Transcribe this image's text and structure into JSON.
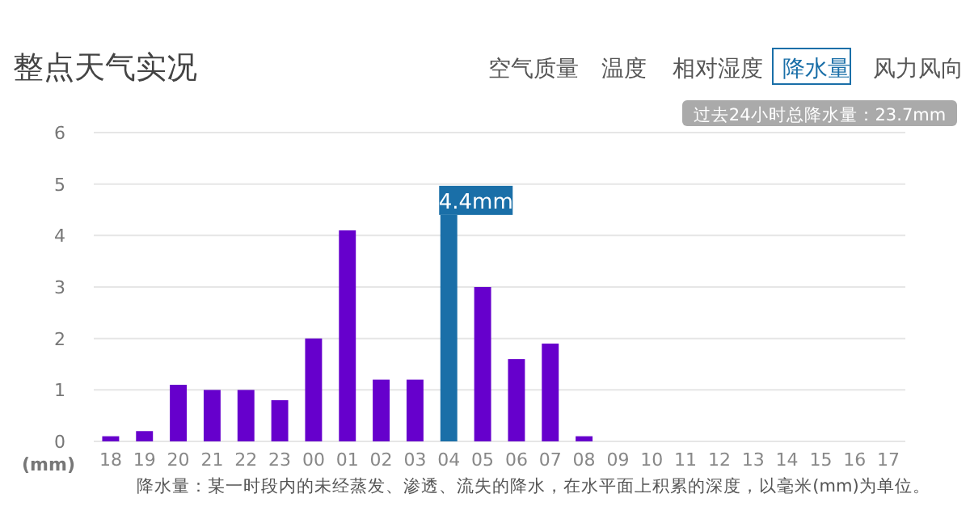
{
  "chart_data": {
    "type": "bar",
    "title": "整点天气实况",
    "annotations": [
      "空气质量",
      "温度",
      "相对湿度",
      "降水量",
      "风力风向",
      "过去24小时总降水量：23.7mm",
      "降水量：某一时段内的未经蒸发、渗透、流失的降水，在水平面上积累的深度，以毫米(mm)为单位。"
    ],
    "ylabel": "(mm)",
    "categories": [
      "18",
      "19",
      "20",
      "21",
      "22",
      "23",
      "00",
      "01",
      "02",
      "03",
      "04",
      "05",
      "06",
      "07",
      "08",
      "09",
      "10",
      "11",
      "12",
      "13",
      "14",
      "15",
      "16",
      "17"
    ],
    "values": [
      0.1,
      0.2,
      1.1,
      1.0,
      1.0,
      0.8,
      2.0,
      4.1,
      1.2,
      1.2,
      4.4,
      3.0,
      1.6,
      1.9,
      0.1,
      0,
      0,
      0,
      0,
      0,
      0,
      0,
      0,
      0
    ],
    "colors": [
      "#6600cc",
      "#6600cc",
      "#6600cc",
      "#6600cc",
      "#6600cc",
      "#6600cc",
      "#6600cc",
      "#6600cc",
      "#6600cc",
      "#6600cc",
      "#1a6fa8",
      "#6600cc",
      "#6600cc",
      "#6600cc",
      "#6600cc",
      "#6600cc",
      "#6600cc",
      "#6600cc",
      "#6600cc",
      "#6600cc",
      "#6600cc",
      "#6600cc",
      "#6600cc",
      "#6600cc"
    ],
    "value_labels": [
      null,
      null,
      null,
      null,
      null,
      null,
      null,
      null,
      null,
      null,
      "4.4mm",
      null,
      null,
      null,
      null,
      null,
      null,
      null,
      null,
      null,
      null,
      null,
      null,
      null
    ],
    "ylim": [
      0,
      6
    ],
    "yticks": [
      0,
      1,
      2,
      3,
      4,
      5,
      6
    ],
    "grid": "y"
  }
}
